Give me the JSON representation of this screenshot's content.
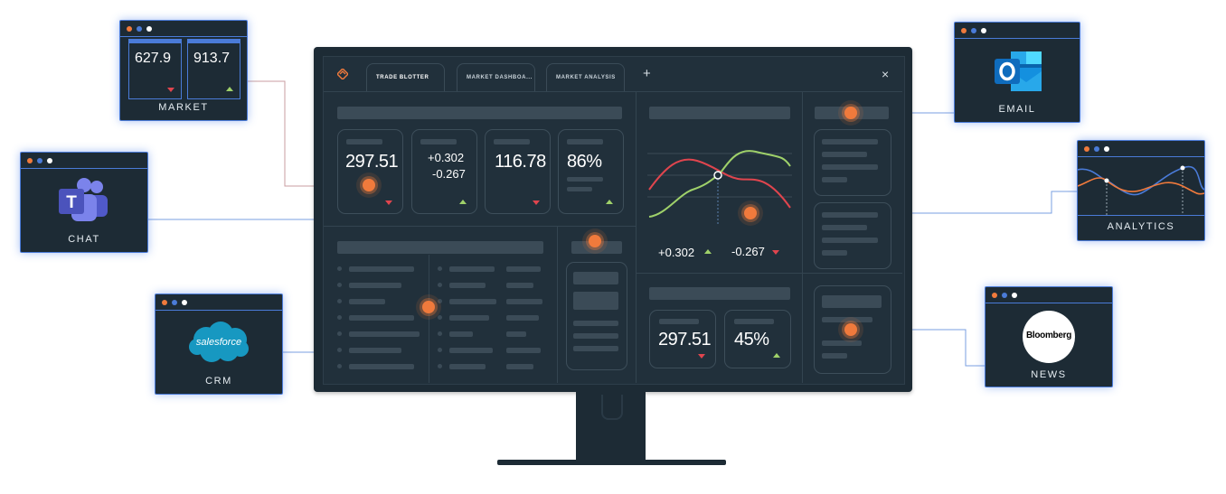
{
  "tabs": [
    {
      "label": "TRADE BLOTTER",
      "active": true
    },
    {
      "label": "MARKET DASHBOA...",
      "active": false
    },
    {
      "label": "MARKET ANALYSIS",
      "active": false
    }
  ],
  "tab_add": "+",
  "close": "×",
  "main_cards": [
    {
      "value": "297.51",
      "trend": "down"
    },
    {
      "value_top": "+0.302",
      "value_bottom": "-0.267",
      "trend": "up"
    },
    {
      "value": "116.78",
      "trend": "down"
    },
    {
      "value": "86%",
      "trend": "up"
    }
  ],
  "chart_changes": {
    "up_value": "+0.302",
    "down_value": "-0.267"
  },
  "lower_cards": [
    {
      "value": "297.51",
      "trend": "down"
    },
    {
      "value": "45%",
      "trend": "up"
    }
  ],
  "widgets": {
    "market": {
      "values": [
        "627.9",
        "913.7"
      ],
      "label": "MARKET"
    },
    "chat": {
      "label": "CHAT",
      "icon": "teams-icon"
    },
    "crm": {
      "label": "CRM",
      "brand": "salesforce",
      "icon": "salesforce-icon"
    },
    "email": {
      "label": "EMAIL",
      "icon": "outlook-icon"
    },
    "analytics": {
      "label": "ANALYTICS"
    },
    "news": {
      "label": "NEWS",
      "brand": "Bloomberg"
    }
  },
  "colors": {
    "accent_orange": "#f07a3c",
    "up_green": "#9fd16a",
    "down_red": "#e0454e",
    "widget_glow": "#4a7bd8",
    "monitor": "#1d2b35"
  }
}
